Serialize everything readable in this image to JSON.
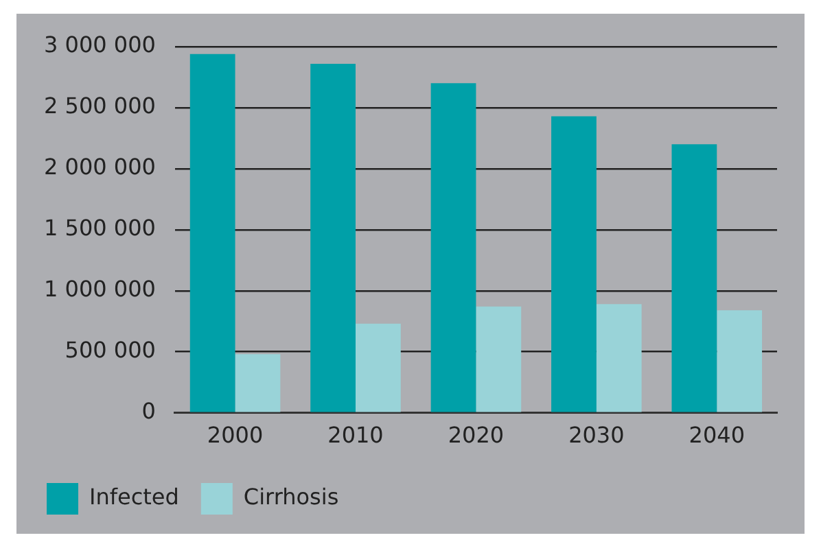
{
  "chart_data": {
    "type": "bar",
    "categories": [
      "2000",
      "2010",
      "2020",
      "2030",
      "2040"
    ],
    "series": [
      {
        "name": "Infected",
        "color": "#00a0a8",
        "values": [
          2940000,
          2860000,
          2700000,
          2430000,
          2200000
        ]
      },
      {
        "name": "Cirrhosis",
        "color": "#99d3d8",
        "values": [
          480000,
          730000,
          870000,
          890000,
          840000
        ]
      }
    ],
    "ylim": [
      0,
      3000000
    ],
    "yticks": [
      {
        "value": 0,
        "label": "0"
      },
      {
        "value": 500000,
        "label": "500 000"
      },
      {
        "value": 1000000,
        "label": "1 000 000"
      },
      {
        "value": 1500000,
        "label": "1 500 000"
      },
      {
        "value": 2000000,
        "label": "2 000 000"
      },
      {
        "value": 2500000,
        "label": "2 500 000"
      },
      {
        "value": 3000000,
        "label": "3 000 000"
      }
    ],
    "grid": "y",
    "legend": "bottom left"
  }
}
